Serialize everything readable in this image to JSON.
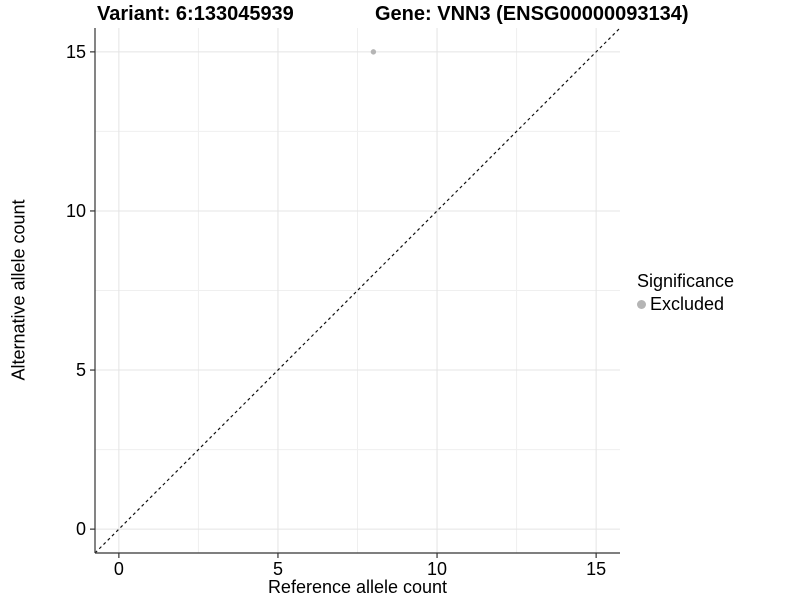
{
  "figure": {
    "title_variant": "Variant: 6:133045939",
    "title_gene": "Gene: VNN3 (ENSG00000093134)"
  },
  "chart_data": {
    "type": "scatter",
    "title_left": "Variant: 6:133045939",
    "title_right": "Gene: VNN3 (ENSG00000093134)",
    "xlabel": "Reference allele count",
    "ylabel": "Alternative allele count",
    "xlim": [
      -0.75,
      15.75
    ],
    "ylim": [
      -0.75,
      15.75
    ],
    "x_ticks": [
      0,
      5,
      10,
      15
    ],
    "y_ticks": [
      0,
      5,
      10,
      15
    ],
    "minor_gridlines": [
      2.5,
      7.5,
      12.5
    ],
    "grid": "on",
    "series": [
      {
        "name": "Excluded",
        "color": "#b5b5b5",
        "points": [
          [
            8,
            15
          ]
        ]
      }
    ],
    "identity_line": {
      "type": "dashed",
      "slope": 1,
      "intercept": 0,
      "color": "#111111"
    },
    "legend": {
      "position": "right",
      "title": "Significance",
      "entries": [
        {
          "label": "Excluded",
          "color": "#b5b5b5"
        }
      ]
    },
    "colors": {
      "background": "#ffffff",
      "grid_major": "#e4e4e4",
      "grid_minor": "#efefef",
      "axis": "#333333",
      "text": "#000000",
      "point": "#b5b5b5"
    }
  }
}
